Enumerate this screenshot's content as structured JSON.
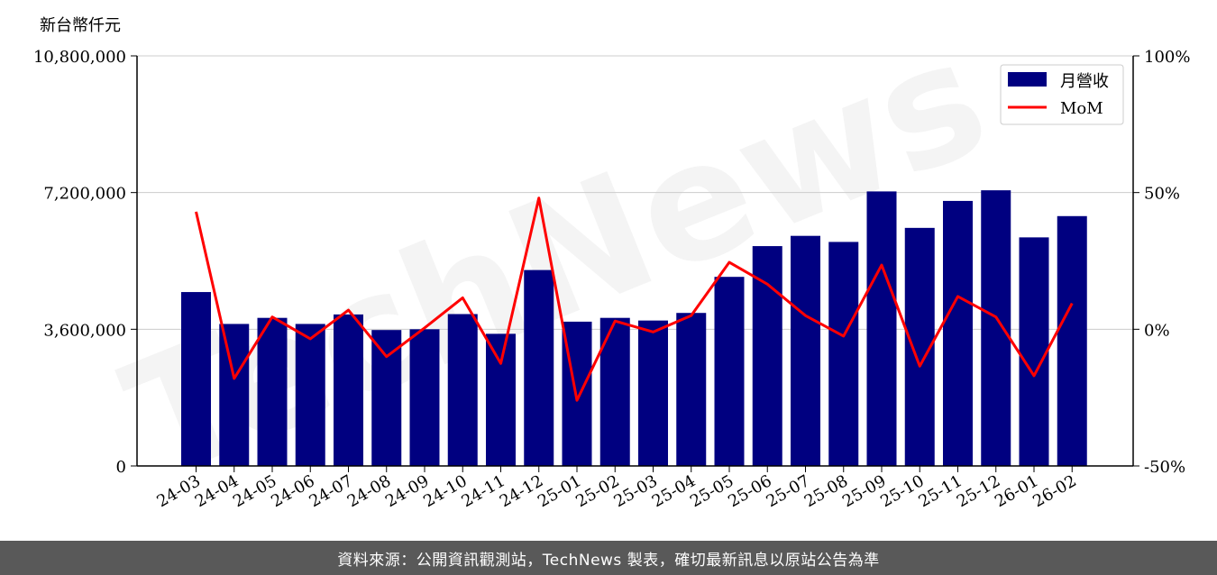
{
  "chart_data": {
    "type": "bar",
    "y_unit_label": "新台幣仟元",
    "categories": [
      "24-03",
      "24-04",
      "24-05",
      "24-06",
      "24-07",
      "24-08",
      "24-09",
      "24-10",
      "24-11",
      "24-12",
      "25-01",
      "25-02",
      "25-03",
      "25-04",
      "25-05",
      "25-06",
      "25-07",
      "25-08",
      "25-09",
      "25-10",
      "25-11",
      "25-12",
      "26-01",
      "26-02"
    ],
    "series": [
      {
        "name": "月營收",
        "kind": "bar",
        "axis": "left",
        "color": "#000080",
        "values": [
          4580000,
          3740000,
          3900000,
          3740000,
          3990000,
          3580000,
          3600000,
          4000000,
          3480000,
          5160000,
          3800000,
          3900000,
          3830000,
          4030000,
          4980000,
          5790000,
          6060000,
          5900000,
          7230000,
          6270000,
          6980000,
          7260000,
          6020000,
          6580000
        ]
      },
      {
        "name": "MoM",
        "kind": "line",
        "axis": "right",
        "color": "#ff0000",
        "values": [
          43,
          -18,
          4.5,
          -3.5,
          7,
          -10,
          0.5,
          11.5,
          -12.5,
          48,
          -26,
          3,
          -1,
          5,
          24.5,
          16.5,
          5,
          -2.5,
          23.5,
          -13.5,
          12,
          4.5,
          -17,
          9.5
        ]
      }
    ],
    "ylim_left": [
      0,
      10800000
    ],
    "yticks_left": [
      "0",
      "3,600,000",
      "7,200,000",
      "10,800,000"
    ],
    "yticks_left_values": [
      0,
      3600000,
      7200000,
      10800000
    ],
    "ylim_right": [
      -50,
      100
    ],
    "yticks_right": [
      "-50%",
      "0%",
      "50%",
      "100%"
    ],
    "yticks_right_values": [
      -50,
      0,
      50,
      100
    ],
    "grid": "horizontal",
    "legend_position": "top-right"
  },
  "watermark_text": "TechNews",
  "footer_text": "資料來源：公開資訊觀測站，TechNews 製表，確切最新訊息以原站公告為準"
}
